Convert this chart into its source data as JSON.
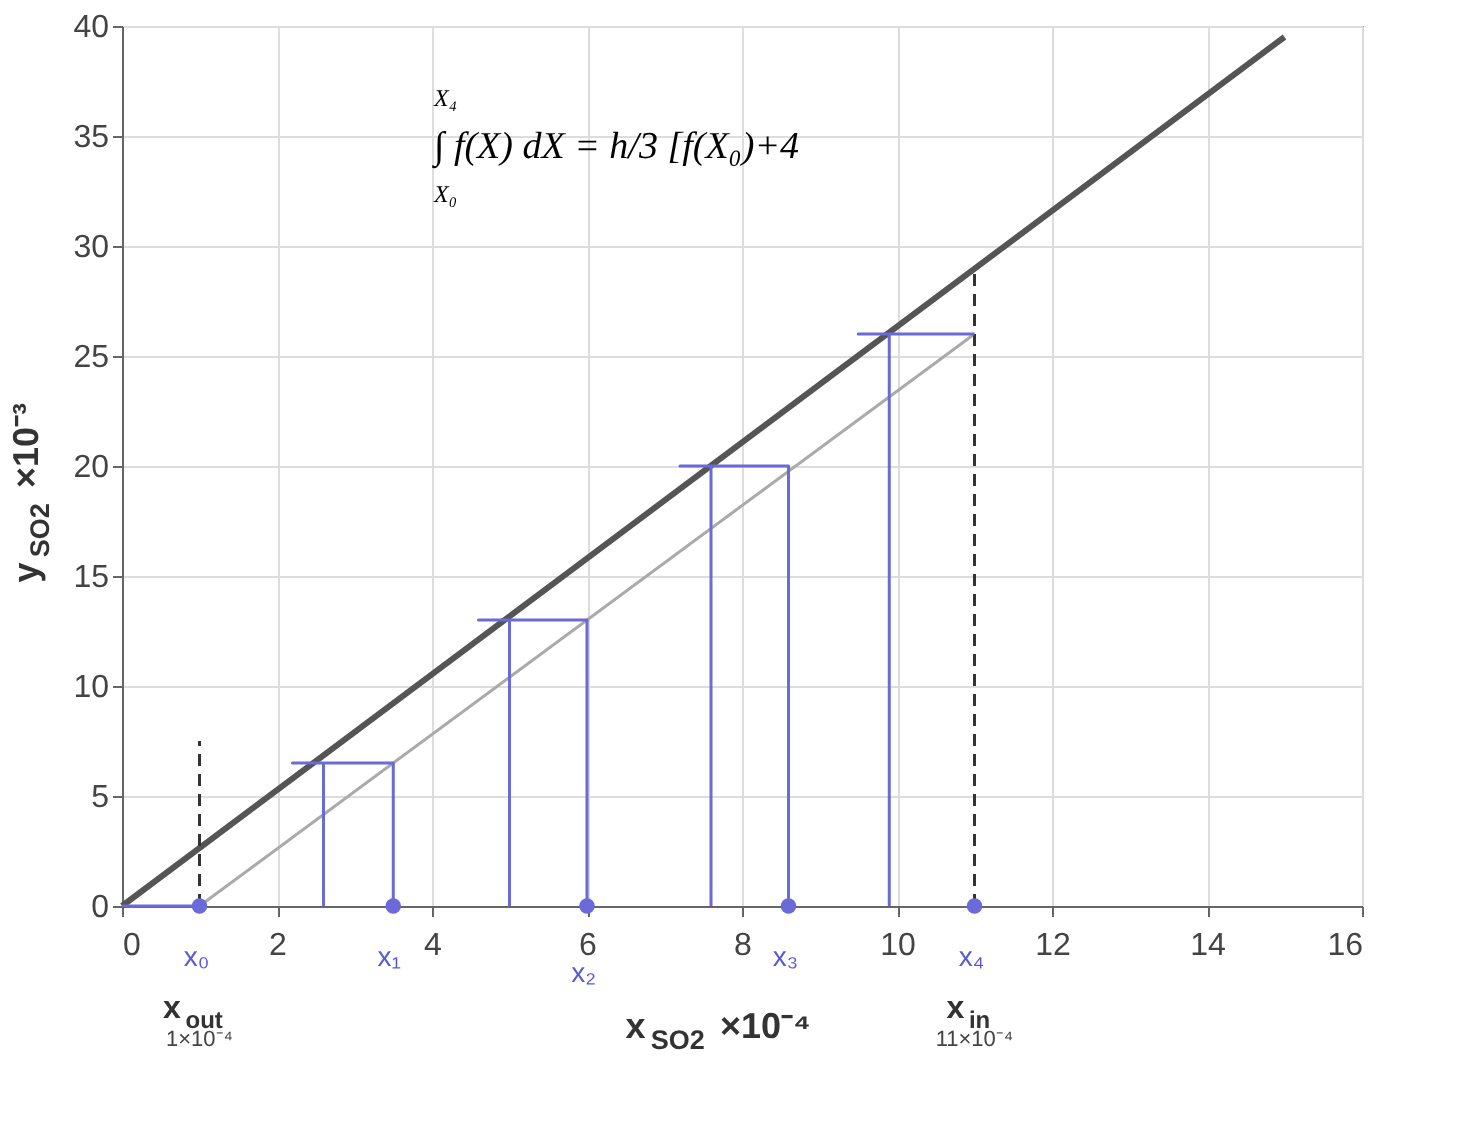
{
  "chart_data": {
    "type": "line",
    "xlabel": "x$_{SO2}$ ×10⁻⁴",
    "ylabel": "y$_{SO2}$ ×10⁻³",
    "xlim": [
      0,
      16
    ],
    "xticks": [
      0,
      2,
      4,
      6,
      8,
      10,
      12,
      14,
      16
    ],
    "ylim": [
      0,
      40
    ],
    "yticks": [
      0,
      5,
      10,
      15,
      20,
      25,
      30,
      35,
      40
    ],
    "grid": true,
    "series": [
      {
        "color": "#555555",
        "x": [
          0,
          15
        ],
        "values": [
          0,
          39.5
        ]
      },
      {
        "color": "#aaaaaa",
        "x": [
          1,
          11
        ],
        "values": [
          0,
          26
        ]
      },
      {
        "color": "#333333",
        "line_style": "dashed",
        "x": [
          1,
          1
        ],
        "values": [
          0,
          7.5
        ]
      },
      {
        "color": "#333333",
        "line_style": "dashed",
        "x": [
          11,
          11
        ],
        "values": [
          0,
          29
        ]
      },
      {
        "color": "#6a6ad8",
        "x": [
          11,
          9.5,
          9.9,
          9.9
        ],
        "values": [
          26,
          26,
          26,
          0
        ]
      },
      {
        "color": "#6a6ad8",
        "x": [
          8.6,
          8.6,
          7.2,
          7.6,
          7.6
        ],
        "values": [
          0,
          20,
          20,
          20,
          0
        ]
      },
      {
        "color": "#6a6ad8",
        "x": [
          6,
          6,
          4.6,
          5,
          5
        ],
        "values": [
          0,
          13,
          13,
          13,
          0
        ]
      },
      {
        "color": "#6a6ad8",
        "x": [
          3.5,
          3.5,
          2.2,
          2.6,
          2.6
        ],
        "values": [
          0,
          6.5,
          6.5,
          6.5,
          0
        ]
      },
      {
        "color": "#6a6ad8",
        "x": [
          1,
          0
        ],
        "values": [
          0,
          0
        ]
      },
      {
        "type": "scatter",
        "color": "#6a6ad8",
        "x": [
          1,
          3.5,
          6,
          8.6,
          11
        ],
        "values": [
          0,
          0,
          0,
          0,
          0
        ]
      }
    ],
    "annotations": [
      "X₄",
      "∫ f(X) dX = h/3 [f(X₀)+4",
      "X₀",
      {
        "text": "x₀",
        "x": 1,
        "y": 0
      },
      {
        "text": "x₁",
        "x": 3.5,
        "y": 0
      },
      {
        "text": "x₂",
        "x": 6,
        "y": 0
      },
      {
        "text": "x₃",
        "x": 8.6,
        "y": 0
      },
      {
        "text": "x₄",
        "x": 11,
        "y": 0
      },
      {
        "text": "x$_{out}$",
        "x": 1,
        "y": 0
      },
      "1×10⁻⁴",
      {
        "text": "x$_{in}$",
        "x": 11,
        "y": 0
      },
      "11×10⁻⁴"
    ]
  }
}
